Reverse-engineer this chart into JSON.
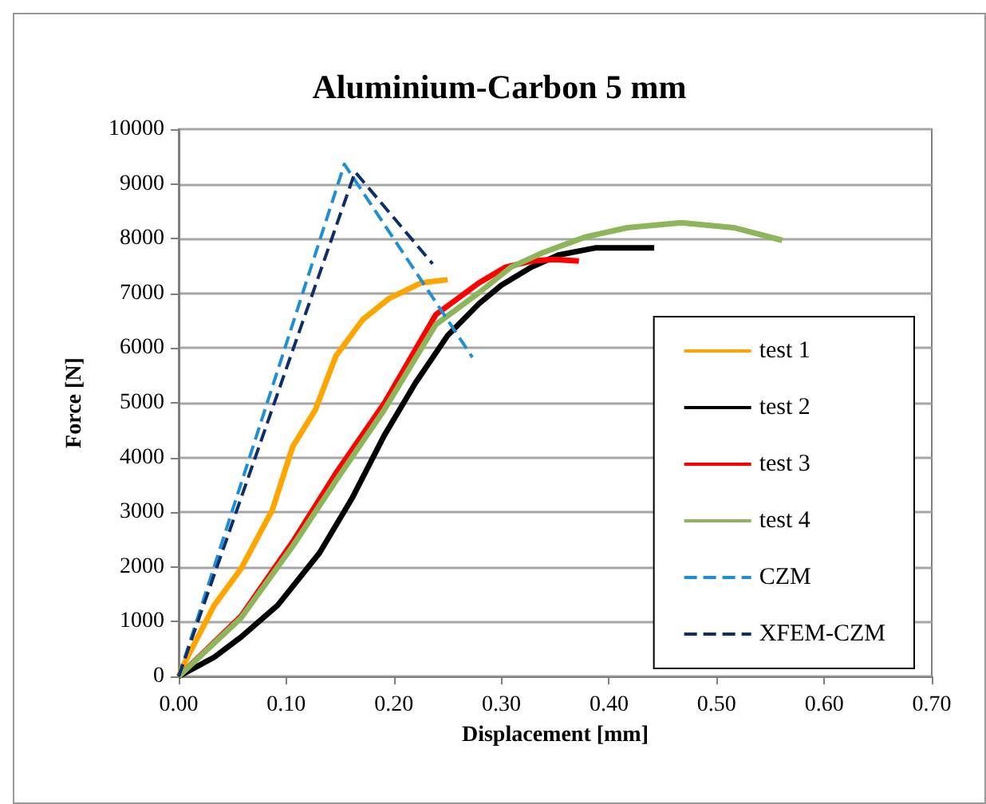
{
  "chart_data": {
    "type": "line",
    "title": "Aluminium-Carbon 5 mm",
    "xlabel": "Displacement [mm]",
    "ylabel": "Force [N]",
    "xlim": [
      0,
      0.7
    ],
    "xticks": [
      {
        "value": 0,
        "label": "0.00"
      },
      {
        "value": 0.1,
        "label": "0.10"
      },
      {
        "value": 0.2,
        "label": "0.20"
      },
      {
        "value": 0.3,
        "label": "0.30"
      },
      {
        "value": 0.4,
        "label": "0.40"
      },
      {
        "value": 0.5,
        "label": "0.50"
      },
      {
        "value": 0.6,
        "label": "0.60"
      },
      {
        "value": 0.7,
        "label": "0.70"
      }
    ],
    "ylim": [
      0,
      10000
    ],
    "yticks": [
      0,
      1000,
      2000,
      3000,
      4000,
      5000,
      6000,
      7000,
      8000,
      9000,
      10000
    ],
    "grid": "y",
    "legend": "bottom right",
    "marker": "none",
    "series": [
      {
        "name": "test 1",
        "color": "#ffa500",
        "line_style": "solid",
        "x": [
          0,
          0.003,
          0.033,
          0.058,
          0.087,
          0.106,
          0.127,
          0.146,
          0.171,
          0.195,
          0.225,
          0.25
        ],
        "values": [
          0,
          150,
          1300,
          1970,
          3040,
          4200,
          4870,
          5850,
          6520,
          6900,
          7190,
          7250
        ]
      },
      {
        "name": "test 2",
        "color": "#000000",
        "line_style": "solid",
        "x": [
          0,
          0.033,
          0.058,
          0.092,
          0.131,
          0.161,
          0.191,
          0.22,
          0.25,
          0.279,
          0.3,
          0.328,
          0.353,
          0.387,
          0.442
        ],
        "values": [
          0,
          350,
          720,
          1300,
          2260,
          3250,
          4400,
          5360,
          6230,
          6810,
          7150,
          7480,
          7700,
          7830,
          7830
        ]
      },
      {
        "name": "test 3",
        "color": "#ff0000",
        "line_style": "solid",
        "x": [
          0,
          0.058,
          0.106,
          0.146,
          0.191,
          0.239,
          0.279,
          0.304,
          0.328,
          0.349,
          0.372
        ],
        "values": [
          0,
          1100,
          2460,
          3710,
          4990,
          6610,
          7190,
          7480,
          7590,
          7620,
          7590
        ]
      },
      {
        "name": "test 4",
        "color": "#8db55a",
        "line_style": "solid",
        "x": [
          0,
          0.058,
          0.106,
          0.146,
          0.191,
          0.239,
          0.279,
          0.309,
          0.338,
          0.378,
          0.417,
          0.467,
          0.516,
          0.561
        ],
        "values": [
          0,
          1070,
          2380,
          3570,
          4870,
          6430,
          7010,
          7480,
          7740,
          8030,
          8200,
          8290,
          8200,
          7970
        ]
      },
      {
        "name": "CZM",
        "color": "#1e8fd6",
        "line_style": "dashed",
        "x": [
          0,
          0.154,
          0.273
        ],
        "values": [
          0,
          9360,
          5830
        ]
      },
      {
        "name": "XFEM-CZM",
        "color": "#0d2d6b",
        "line_style": "dashed",
        "x": [
          0,
          0.164,
          0.236
        ],
        "values": [
          0,
          9220,
          7540
        ]
      }
    ]
  }
}
